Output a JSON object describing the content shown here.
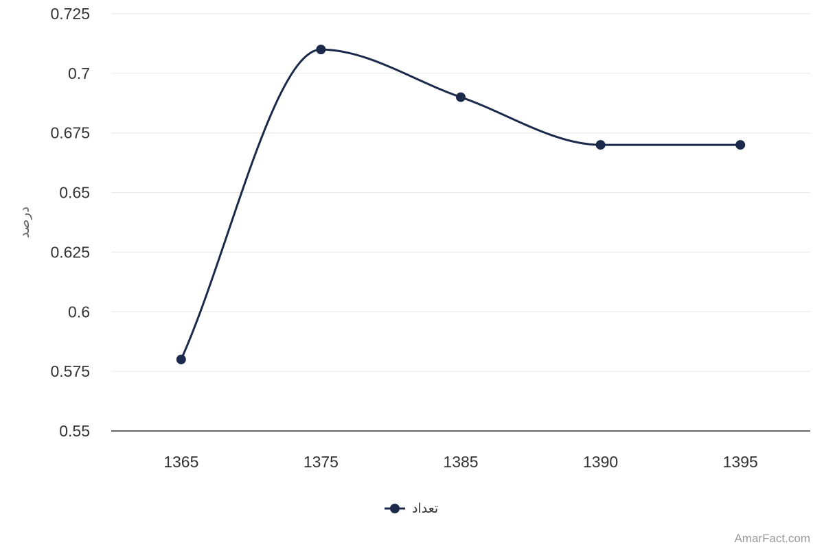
{
  "chart_data": {
    "type": "line",
    "title": "",
    "xlabel": "",
    "ylabel": "درصد",
    "categories": [
      "1365",
      "1375",
      "1385",
      "1390",
      "1395"
    ],
    "series": [
      {
        "name": "تعداد",
        "values": [
          0.58,
          0.71,
          0.69,
          0.67,
          0.67
        ],
        "color": "#1b2a4a"
      }
    ],
    "ylim": [
      0.55,
      0.725
    ],
    "yticks": [
      "0.55",
      "0.575",
      "0.6",
      "0.625",
      "0.65",
      "0.675",
      "0.7",
      "0.725"
    ],
    "grid": true,
    "legend_position": "bottom-center",
    "smooth": true
  },
  "credit": "AmarFact.com"
}
